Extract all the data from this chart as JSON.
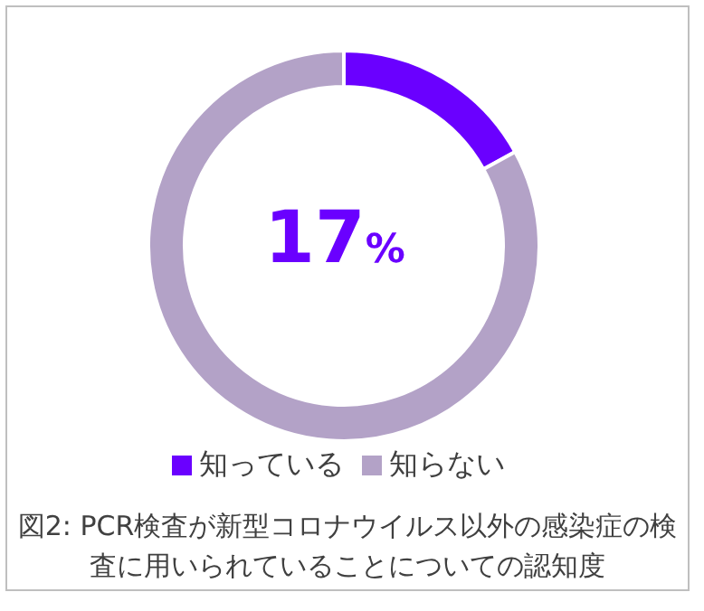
{
  "chart_data": {
    "type": "donut",
    "categories": [
      "知っている",
      "知らない"
    ],
    "values": [
      17,
      83
    ],
    "colors": [
      "#6a00ff",
      "#b3a2c7"
    ],
    "value_labels": [
      "17%",
      null
    ],
    "legend": "bottom",
    "annotations": [
      "図2: PCR検査が新型コロナウイルス以外の感染症の検査に用いられていることについての認知度"
    ]
  }
}
